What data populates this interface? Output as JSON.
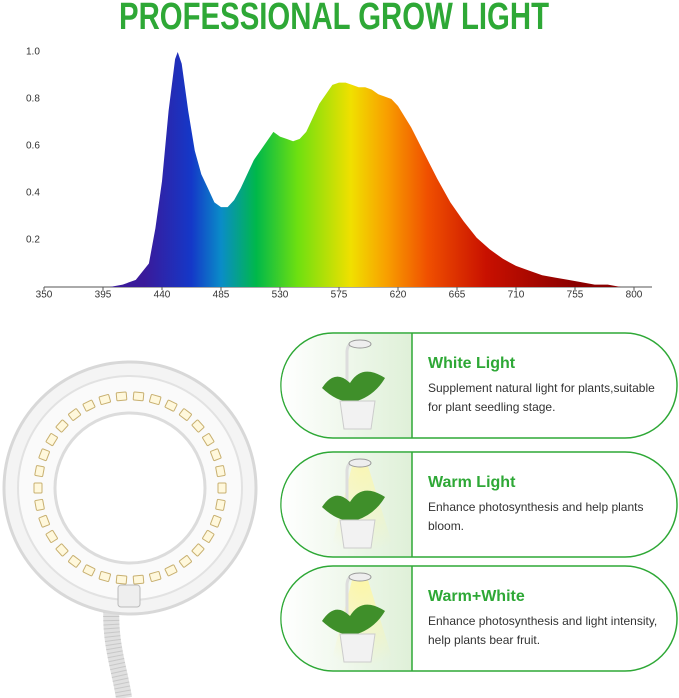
{
  "chart_data": {
    "type": "area",
    "title": "PROFESSIONAL GROW LIGHT",
    "x": [
      350,
      400,
      410,
      420,
      430,
      435,
      440,
      445,
      450,
      452,
      455,
      460,
      465,
      470,
      475,
      480,
      485,
      490,
      495,
      500,
      505,
      510,
      515,
      520,
      525,
      530,
      535,
      540,
      545,
      550,
      555,
      560,
      565,
      570,
      575,
      580,
      585,
      590,
      595,
      600,
      605,
      610,
      615,
      620,
      630,
      640,
      650,
      660,
      670,
      680,
      690,
      700,
      710,
      720,
      730,
      740,
      750,
      760,
      770,
      780,
      790,
      800
    ],
    "values": [
      0,
      0,
      0.01,
      0.03,
      0.1,
      0.25,
      0.45,
      0.75,
      0.97,
      1.0,
      0.95,
      0.75,
      0.58,
      0.48,
      0.42,
      0.36,
      0.34,
      0.34,
      0.37,
      0.42,
      0.48,
      0.54,
      0.58,
      0.62,
      0.66,
      0.64,
      0.63,
      0.62,
      0.63,
      0.66,
      0.72,
      0.78,
      0.82,
      0.86,
      0.87,
      0.87,
      0.86,
      0.85,
      0.85,
      0.84,
      0.82,
      0.81,
      0.8,
      0.77,
      0.68,
      0.57,
      0.46,
      0.36,
      0.28,
      0.21,
      0.16,
      0.12,
      0.09,
      0.07,
      0.05,
      0.04,
      0.03,
      0.02,
      0.01,
      0.01,
      0,
      0
    ],
    "xlim": [
      350,
      800
    ],
    "ylim": [
      0,
      1
    ],
    "xticks": [
      350,
      395,
      440,
      485,
      530,
      575,
      620,
      665,
      710,
      755,
      800
    ],
    "yticks": [
      0.2,
      0.4,
      0.6,
      0.8,
      {
        "value": 1,
        "label": "1.0"
      }
    ]
  },
  "panels": [
    {
      "title": "White Light",
      "description": "Supplement natural light for plants,suitable for plant seedling stage."
    },
    {
      "title": "Warm Light",
      "description": "Enhance photosynthesis and help plants bloom."
    },
    {
      "title": "Warm+White",
      "description": "Enhance photosynthesis and light intensity, help plants bear fruit."
    }
  ]
}
